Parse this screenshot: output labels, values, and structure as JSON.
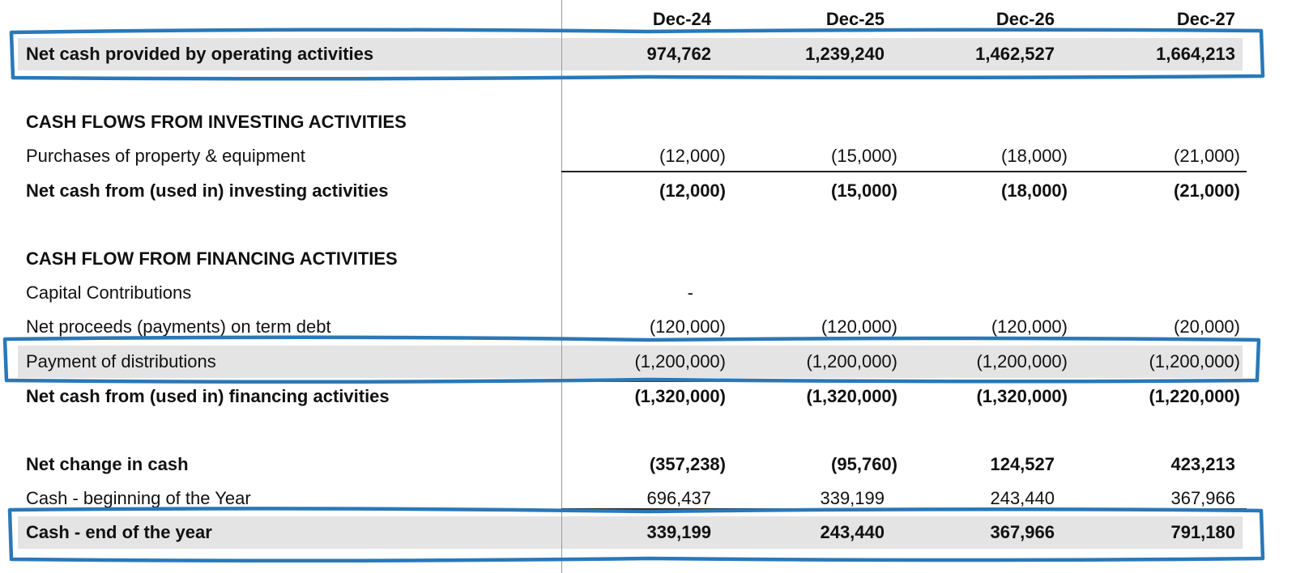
{
  "header": {
    "columns": [
      "Dec-24",
      "Dec-25",
      "Dec-26",
      "Dec-27"
    ]
  },
  "rows": [
    {
      "label": "Net cash provided by operating activities",
      "values": [
        "974,762",
        "1,239,240",
        "1,462,527",
        "1,664,213"
      ]
    },
    {
      "label": "CASH FLOWS FROM INVESTING ACTIVITIES",
      "values": [
        "",
        "",
        "",
        ""
      ]
    },
    {
      "label": "Purchases of property & equipment",
      "values": [
        "(12,000)",
        "(15,000)",
        "(18,000)",
        "(21,000)"
      ]
    },
    {
      "label": "Net cash from (used in) investing activities",
      "values": [
        "(12,000)",
        "(15,000)",
        "(18,000)",
        "(21,000)"
      ]
    },
    {
      "label": "CASH FLOW FROM FINANCING ACTIVITIES",
      "values": [
        "",
        "",
        "",
        ""
      ]
    },
    {
      "label": "Capital Contributions",
      "values": [
        "-",
        "",
        "",
        ""
      ]
    },
    {
      "label": "Net proceeds (payments) on term debt",
      "values": [
        "(120,000)",
        "(120,000)",
        "(120,000)",
        "(20,000)"
      ]
    },
    {
      "label": "Payment of distributions",
      "values": [
        "(1,200,000)",
        "(1,200,000)",
        "(1,200,000)",
        "(1,200,000)"
      ]
    },
    {
      "label": "Net cash from (used in) financing activities",
      "values": [
        "(1,320,000)",
        "(1,320,000)",
        "(1,320,000)",
        "(1,220,000)"
      ]
    },
    {
      "label": "Net change in cash",
      "values": [
        "(357,238)",
        "(95,760)",
        "124,527",
        "423,213"
      ]
    },
    {
      "label": "Cash - beginning of the Year",
      "values": [
        "696,437",
        "339,199",
        "243,440",
        "367,966"
      ]
    },
    {
      "label": "Cash - end of the year",
      "values": [
        "339,199",
        "243,440",
        "367,966",
        "791,180"
      ]
    }
  ],
  "highlight_color": "#2a78b8",
  "band_color": "#e4e4e4"
}
